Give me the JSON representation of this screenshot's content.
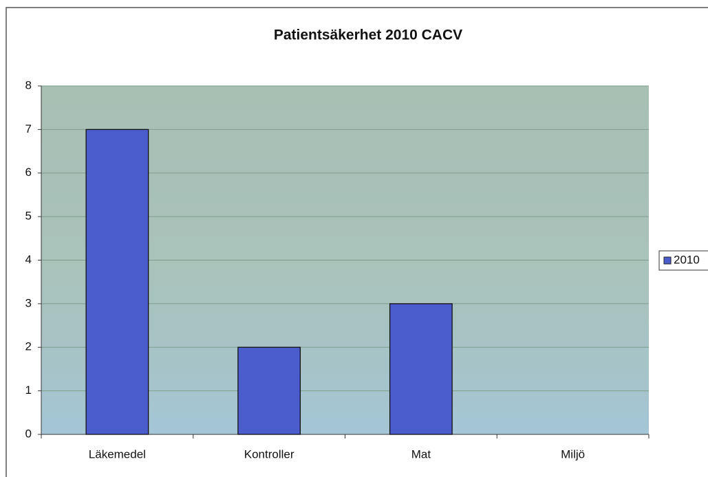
{
  "chart_data": {
    "type": "bar",
    "title": "Patientsäkerhet 2010 CACV",
    "categories": [
      "Läkemedel",
      "Kontroller",
      "Mat",
      "Miljö"
    ],
    "series": [
      {
        "name": "2010",
        "color": "#4b5ccc",
        "values": [
          7,
          2,
          3,
          0
        ]
      }
    ],
    "ylim": [
      0,
      8
    ],
    "yticks": [
      0,
      1,
      2,
      3,
      4,
      5,
      6,
      7,
      8
    ],
    "grid": true,
    "legend": "right"
  }
}
